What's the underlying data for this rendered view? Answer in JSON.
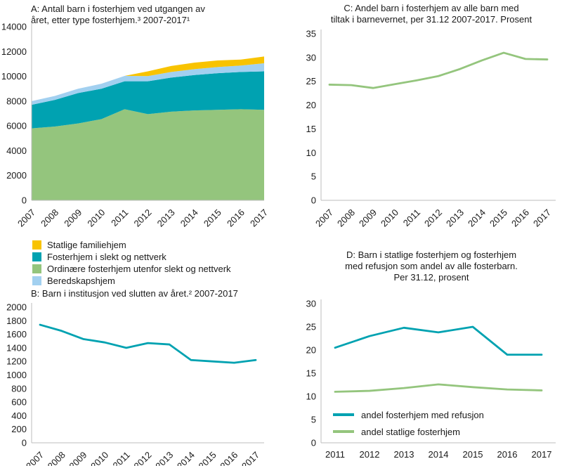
{
  "colors": {
    "teal": "#00a2b1",
    "green": "#94c57d",
    "light_blue": "#a2d0f0",
    "yellow": "#f8c300",
    "axis": "#bdbdbd",
    "text": "#1a1a1a"
  },
  "chart_data": [
    {
      "id": "A",
      "type": "stacked-area",
      "title_lines": [
        "A: Antall barn i fosterhjem ved utgangen av",
        "året, etter type fosterhjem.³ 2007-2017¹"
      ],
      "x": [
        "2007",
        "2008",
        "2009",
        "2010",
        "2011",
        "2012",
        "2013",
        "2014",
        "2015",
        "2016",
        "2017"
      ],
      "ylim": [
        0,
        14000
      ],
      "yticks": [
        0,
        2000,
        4000,
        6000,
        8000,
        10000,
        12000,
        14000
      ],
      "series": [
        {
          "name": "Ordinære fosterhjem utenfor slekt og nettverk",
          "color": "green",
          "values": [
            5800,
            5950,
            6200,
            6550,
            7350,
            6950,
            7150,
            7250,
            7300,
            7350,
            7300
          ]
        },
        {
          "name": "Fosterhjem i slekt og nettverk",
          "color": "teal",
          "values": [
            1900,
            2150,
            2450,
            2450,
            2250,
            2650,
            2750,
            2850,
            2950,
            3000,
            3100
          ]
        },
        {
          "name": "Beredskapshjem",
          "color": "light_blue",
          "values": [
            300,
            320,
            350,
            400,
            430,
            420,
            450,
            480,
            500,
            520,
            650
          ]
        },
        {
          "name": "Statlige familiehjem",
          "color": "yellow",
          "values": [
            0,
            0,
            0,
            0,
            0,
            380,
            480,
            520,
            530,
            480,
            550
          ]
        }
      ],
      "legend": [
        {
          "label": "Statlige familiehjem",
          "color": "yellow"
        },
        {
          "label": "Fosterhjem i slekt og nettverk",
          "color": "teal"
        },
        {
          "label": "Ordinære fosterhjem utenfor slekt og nettverk",
          "color": "green"
        },
        {
          "label": "Beredskapshjem",
          "color": "light_blue"
        }
      ]
    },
    {
      "id": "B",
      "type": "line",
      "title_lines": [
        "B: Barn i institusjon ved slutten av året.² 2007-2017"
      ],
      "x": [
        "2007",
        "2008",
        "2009",
        "2010",
        "2011",
        "2012",
        "2013",
        "2014",
        "2015",
        "2016",
        "2017"
      ],
      "ylim": [
        0,
        2000
      ],
      "yticks": [
        0,
        200,
        400,
        600,
        800,
        1000,
        1200,
        1400,
        1600,
        1800,
        2000
      ],
      "series": [
        {
          "name": "Barn i institusjon",
          "color": "teal",
          "values": [
            1740,
            1650,
            1530,
            1480,
            1400,
            1470,
            1450,
            1220,
            1200,
            1180,
            1220
          ]
        }
      ]
    },
    {
      "id": "C",
      "type": "line",
      "title_lines": [
        "C: Andel barn i fosterhjem av alle barn med",
        "tiltak i barnevernet, per 31.12 2007-2017. Prosent"
      ],
      "x": [
        "2007",
        "2008",
        "2009",
        "2010",
        "2011",
        "2012",
        "2013",
        "2014",
        "2015",
        "2016",
        "2017"
      ],
      "ylim": [
        0,
        35
      ],
      "yticks": [
        0,
        5,
        10,
        15,
        20,
        25,
        30,
        35
      ],
      "series": [
        {
          "name": "Andel barn i fosterhjem",
          "color": "green",
          "values": [
            24.3,
            24.2,
            23.6,
            24.4,
            25.2,
            26.1,
            27.6,
            29.4,
            31.0,
            29.7,
            29.6
          ]
        }
      ]
    },
    {
      "id": "D",
      "type": "line",
      "title_lines": [
        "D: Barn i statlige fosterhjem og fosterhjem",
        "med refusjon som andel av alle fosterbarn.",
        "Per 31.12, prosent"
      ],
      "x": [
        "2011",
        "2012",
        "2013",
        "2014",
        "2015",
        "2016",
        "2017"
      ],
      "ylim": [
        0,
        30
      ],
      "yticks": [
        0,
        5,
        10,
        15,
        20,
        25,
        30
      ],
      "series": [
        {
          "name": "andel fosterhjem med refusjon",
          "color": "teal",
          "values": [
            20.5,
            23.0,
            24.8,
            23.8,
            25.0,
            19.0,
            19.0
          ]
        },
        {
          "name": "andel statlige fosterhjem",
          "color": "green",
          "values": [
            11.0,
            11.2,
            11.8,
            12.6,
            12.0,
            11.5,
            11.3
          ]
        }
      ],
      "legend": [
        {
          "label": "andel fosterhjem med refusjon",
          "color": "teal"
        },
        {
          "label": "andel statlige fosterhjem",
          "color": "green"
        }
      ]
    }
  ]
}
